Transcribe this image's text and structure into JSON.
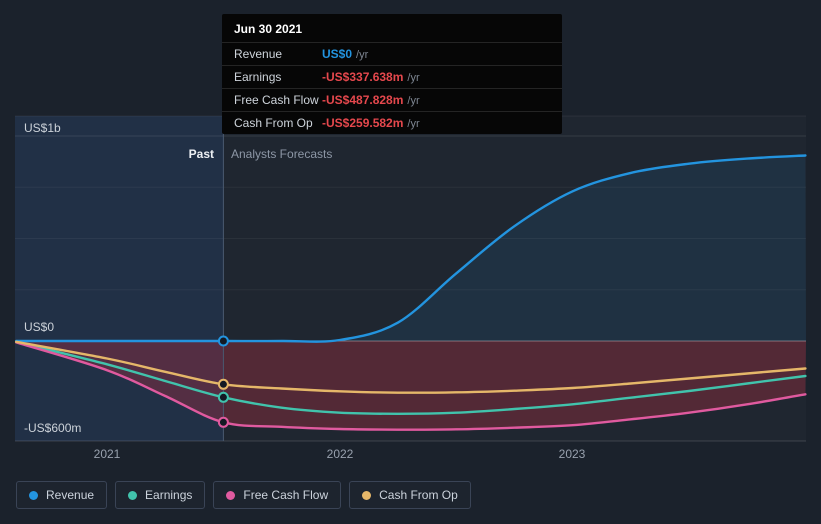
{
  "tooltip": {
    "date": "Jun 30 2021",
    "rows": [
      {
        "label": "Revenue",
        "value": "US$0",
        "suffix": "/yr",
        "value_color": "#2394df"
      },
      {
        "label": "Earnings",
        "value": "-US$337.638m",
        "suffix": "/yr",
        "value_color": "#e5484d"
      },
      {
        "label": "Free Cash Flow",
        "value": "-US$487.828m",
        "suffix": "/yr",
        "value_color": "#e5484d"
      },
      {
        "label": "Cash From Op",
        "value": "-US$259.582m",
        "suffix": "/yr",
        "value_color": "#e5484d"
      }
    ]
  },
  "chart": {
    "past_label": "Past",
    "forecast_label": "Analysts Forecasts",
    "y_axis_labels": [
      "US$1b",
      "US$0",
      "-US$600m"
    ],
    "x_ticks": [
      "2021",
      "2022",
      "2023"
    ]
  },
  "legend": [
    {
      "label": "Revenue",
      "color": "#2394df"
    },
    {
      "label": "Earnings",
      "color": "#41c3ac"
    },
    {
      "label": "Free Cash Flow",
      "color": "#e05a9f"
    },
    {
      "label": "Cash From Op",
      "color": "#e5b769"
    }
  ],
  "colors": {
    "background": "#1b222c",
    "negative_fill": "rgba(155,45,65,0.42)",
    "past_region_fill": "rgba(44,92,170,0.18)",
    "revenue_fill": "rgba(35,148,223,0.10)"
  },
  "chart_data": {
    "type": "line",
    "x_axis": "year",
    "unit": "US$ millions per year",
    "ylim_m": [
      -600,
      1000
    ],
    "divider_x": 2021.5,
    "marker_x": 2021.5,
    "x": [
      2020.61,
      2021.0,
      2021.25,
      2021.5,
      2021.75,
      2022.0,
      2022.25,
      2022.5,
      2022.75,
      2023.0,
      2023.25,
      2023.5,
      2023.75,
      2024.0
    ],
    "series": [
      {
        "name": "Revenue",
        "color": "#2394df",
        "values": [
          0,
          0,
          0,
          0,
          0,
          5,
          90,
          330,
          560,
          730,
          820,
          865,
          890,
          905
        ]
      },
      {
        "name": "Earnings",
        "color": "#41c3ac",
        "values": [
          -5,
          -140,
          -240,
          -337.638,
          -400,
          -430,
          -437,
          -430,
          -408,
          -380,
          -340,
          -300,
          -255,
          -210
        ]
      },
      {
        "name": "Free Cash Flow",
        "color": "#e05a9f",
        "values": [
          -8,
          -175,
          -330,
          -487.828,
          -515,
          -528,
          -532,
          -530,
          -520,
          -505,
          -470,
          -430,
          -380,
          -320
        ]
      },
      {
        "name": "Cash From Op",
        "color": "#e5b769",
        "values": [
          -5,
          -105,
          -185,
          -259.582,
          -285,
          -302,
          -310,
          -308,
          -298,
          -282,
          -255,
          -225,
          -195,
          -165
        ]
      }
    ]
  }
}
